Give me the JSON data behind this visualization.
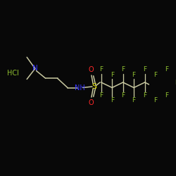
{
  "background_color": "#080808",
  "bond_color": "#c8c8a0",
  "atom_colors": {
    "N": "#3838ff",
    "O": "#ff2828",
    "S": "#e0e000",
    "F": "#90c030",
    "HCl": "#90c030"
  },
  "figsize": [
    2.5,
    2.5
  ],
  "dpi": 100,
  "xlim": [
    0,
    10
  ],
  "ylim": [
    0,
    10
  ]
}
